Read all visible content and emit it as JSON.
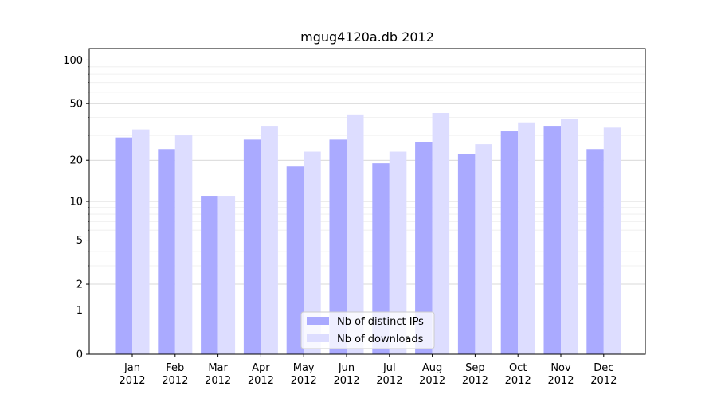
{
  "chart_data": {
    "type": "bar",
    "title": "mgug4120a.db 2012",
    "xlabel": "",
    "ylabel": "",
    "y_scale": "log(1+y)",
    "ylim": [
      0,
      120
    ],
    "yticks": [
      0,
      1,
      2,
      5,
      10,
      20,
      50,
      100
    ],
    "categories": [
      {
        "month": "Jan",
        "year": "2012"
      },
      {
        "month": "Feb",
        "year": "2012"
      },
      {
        "month": "Mar",
        "year": "2012"
      },
      {
        "month": "Apr",
        "year": "2012"
      },
      {
        "month": "May",
        "year": "2012"
      },
      {
        "month": "Jun",
        "year": "2012"
      },
      {
        "month": "Jul",
        "year": "2012"
      },
      {
        "month": "Aug",
        "year": "2012"
      },
      {
        "month": "Sep",
        "year": "2012"
      },
      {
        "month": "Oct",
        "year": "2012"
      },
      {
        "month": "Nov",
        "year": "2012"
      },
      {
        "month": "Dec",
        "year": "2012"
      }
    ],
    "series": [
      {
        "name": "Nb of distinct IPs",
        "color": "#aaaaff",
        "values": [
          29,
          24,
          11,
          28,
          18,
          28,
          19,
          27,
          22,
          32,
          35,
          24
        ]
      },
      {
        "name": "Nb of downloads",
        "color": "#ddddff",
        "values": [
          33,
          30,
          11,
          35,
          23,
          42,
          23,
          43,
          26,
          37,
          39,
          34
        ]
      }
    ],
    "legend_position": "lower-center",
    "grid": "horizontal"
  }
}
